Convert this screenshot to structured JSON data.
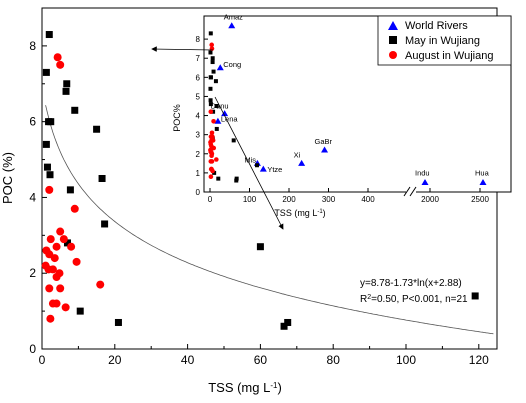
{
  "chart_data": [
    {
      "type": "scatter",
      "xlabel": "TSS (mg L",
      "xlabel_sup": "-1",
      "xlabel_end": ")",
      "ylabel": "POC (%)",
      "xlim": [
        0,
        125
      ],
      "ylim": [
        0,
        9
      ],
      "xticks": [
        0,
        20,
        40,
        60,
        80,
        100,
        120
      ],
      "yticks": [
        0,
        2,
        4,
        6,
        8
      ],
      "series": [
        {
          "name": "May in Wujiang",
          "marker": "square",
          "color": "#000000",
          "points": [
            [
              1.2,
              7.3
            ],
            [
              2.0,
              8.3
            ],
            [
              1.8,
              6.0
            ],
            [
              2.4,
              6.0
            ],
            [
              1.2,
              5.4
            ],
            [
              1.5,
              4.8
            ],
            [
              2.2,
              4.6
            ],
            [
              6.8,
              7.0
            ],
            [
              6.6,
              6.8
            ],
            [
              9.0,
              6.3
            ],
            [
              15.0,
              5.8
            ],
            [
              16.5,
              4.5
            ],
            [
              7.8,
              4.2
            ],
            [
              17.2,
              3.3
            ],
            [
              7.0,
              2.8
            ],
            [
              10.5,
              1.0
            ],
            [
              21.0,
              0.7
            ],
            [
              60.0,
              2.7
            ],
            [
              66.5,
              0.6
            ],
            [
              67.5,
              0.7
            ],
            [
              119.0,
              1.4
            ]
          ]
        },
        {
          "name": "August in Wujiang",
          "marker": "circle",
          "color": "#ff0000",
          "points": [
            [
              4.3,
              7.7
            ],
            [
              5.0,
              7.5
            ],
            [
              2.0,
              4.2
            ],
            [
              9.0,
              3.7
            ],
            [
              5.0,
              3.1
            ],
            [
              2.4,
              2.9
            ],
            [
              4.0,
              2.7
            ],
            [
              6.0,
              2.9
            ],
            [
              8.0,
              2.7
            ],
            [
              1.2,
              2.6
            ],
            [
              2.0,
              2.5
            ],
            [
              3.5,
              2.4
            ],
            [
              1.0,
              2.2
            ],
            [
              1.8,
              2.1
            ],
            [
              3.0,
              2.1
            ],
            [
              9.5,
              2.3
            ],
            [
              4.8,
              2.0
            ],
            [
              4.0,
              1.9
            ],
            [
              2.0,
              1.6
            ],
            [
              5.0,
              1.6
            ],
            [
              3.0,
              1.2
            ],
            [
              4.0,
              1.2
            ],
            [
              6.5,
              1.1
            ],
            [
              2.3,
              0.8
            ],
            [
              16.0,
              1.7
            ]
          ]
        }
      ],
      "fit_curve": {
        "equation": "y=8.78-1.73*ln(x+2.88)",
        "r2": "R",
        "r2_sup": "2",
        "stats": "=0.50, P<0.001, n=21",
        "a": 8.78,
        "b": -1.73,
        "c": 2.88
      }
    },
    {
      "type": "scatter",
      "inset": true,
      "xlabel": "TSS (mg L",
      "xlabel_sup": "-1",
      "xlabel_end": ")",
      "ylabel": "POC%",
      "ylim": [
        0,
        9
      ],
      "xticks": [
        "0",
        "100",
        "200",
        "300",
        "400",
        "2000",
        "2500"
      ],
      "xtick_values": [
        0,
        100,
        200,
        300,
        400,
        2000,
        2500
      ],
      "yticks": [
        0,
        1,
        2,
        3,
        4,
        5,
        6,
        7,
        8
      ],
      "axis_break": true,
      "legend": [
        "World Rivers",
        "May in Wujiang",
        "August in Wujiang"
      ],
      "series": [
        {
          "name": "World Rivers",
          "marker": "triangle",
          "color": "#0000ff",
          "points": [
            {
              "x": 55,
              "y": 8.7,
              "label": "Amaz"
            },
            {
              "x": 26,
              "y": 6.5,
              "label": "Cong"
            },
            {
              "x": 37,
              "y": 4.1,
              "label": "Danu"
            },
            {
              "x": 20,
              "y": 3.7,
              "label": "Lena"
            },
            {
              "x": 290,
              "y": 2.2,
              "label": "GaBr"
            },
            {
              "x": 232,
              "y": 1.5,
              "label": "Xi"
            },
            {
              "x": 120,
              "y": 1.5,
              "label": "Mis"
            },
            {
              "x": 135,
              "y": 1.2,
              "label": "Ytze"
            },
            {
              "x": 1950,
              "y": 0.5,
              "label": "Indu"
            },
            {
              "x": 2530,
              "y": 0.5,
              "label": "Hua"
            }
          ]
        },
        {
          "name": "May in Wujiang",
          "marker": "square",
          "color": "#000000",
          "points": [
            [
              1.2,
              7.3
            ],
            [
              2.0,
              8.3
            ],
            [
              1.8,
              6.0
            ],
            [
              2.4,
              6.0
            ],
            [
              1.2,
              5.4
            ],
            [
              1.5,
              4.8
            ],
            [
              2.2,
              4.6
            ],
            [
              6.8,
              7.0
            ],
            [
              6.6,
              6.8
            ],
            [
              9.0,
              6.3
            ],
            [
              15.0,
              5.8
            ],
            [
              16.5,
              4.5
            ],
            [
              7.8,
              4.2
            ],
            [
              17.2,
              3.3
            ],
            [
              7.0,
              2.8
            ],
            [
              10.5,
              1.0
            ],
            [
              21.0,
              0.7
            ],
            [
              60.0,
              2.7
            ],
            [
              66.5,
              0.6
            ],
            [
              67.5,
              0.7
            ],
            [
              119.0,
              1.4
            ]
          ]
        },
        {
          "name": "August in Wujiang",
          "marker": "circle",
          "color": "#ff0000",
          "points": [
            [
              4.3,
              7.7
            ],
            [
              5.0,
              7.5
            ],
            [
              2.0,
              4.2
            ],
            [
              9.0,
              3.7
            ],
            [
              5.0,
              3.1
            ],
            [
              2.4,
              2.9
            ],
            [
              4.0,
              2.7
            ],
            [
              6.0,
              2.9
            ],
            [
              8.0,
              2.7
            ],
            [
              1.2,
              2.6
            ],
            [
              2.0,
              2.5
            ],
            [
              3.5,
              2.4
            ],
            [
              1.0,
              2.2
            ],
            [
              1.8,
              2.1
            ],
            [
              3.0,
              2.1
            ],
            [
              9.5,
              2.3
            ],
            [
              4.8,
              2.0
            ],
            [
              4.0,
              1.9
            ],
            [
              2.0,
              1.6
            ],
            [
              5.0,
              1.6
            ],
            [
              3.0,
              1.2
            ],
            [
              4.0,
              1.2
            ],
            [
              6.5,
              1.1
            ],
            [
              2.3,
              0.8
            ],
            [
              16.0,
              1.7
            ]
          ]
        }
      ]
    }
  ]
}
